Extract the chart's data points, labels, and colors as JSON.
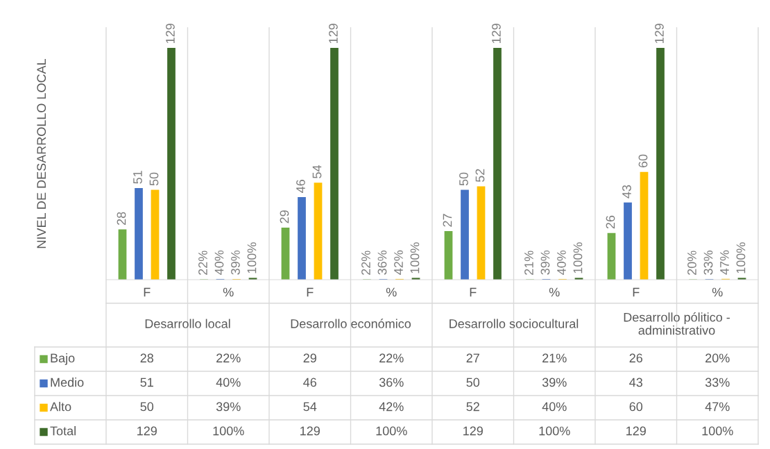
{
  "chart_data": {
    "type": "bar",
    "ylabel": "NIVEL DE DESARROLLO LOCAL",
    "categories": [
      "F",
      "%",
      "F",
      "%",
      "F",
      "%",
      "F",
      "%"
    ],
    "annotations": [
      "Desarrollo local",
      "Desarrollo económico",
      "Desarrollo sociocultural",
      "Desarrollo pólitico - administrativo"
    ],
    "series": [
      {
        "name": "Bajo",
        "color": "#70ad47",
        "values": [
          28,
          0.22,
          29,
          0.22,
          27,
          0.21,
          26,
          0.2
        ],
        "value_labels": [
          "28",
          "22%",
          "29",
          "22%",
          "27",
          "21%",
          "26",
          "20%"
        ]
      },
      {
        "name": "Medio",
        "color": "#4472c4",
        "values": [
          51,
          0.4,
          46,
          0.36,
          50,
          0.39,
          43,
          0.33
        ],
        "value_labels": [
          "51",
          "40%",
          "46",
          "36%",
          "50",
          "39%",
          "43",
          "33%"
        ]
      },
      {
        "name": "Alto",
        "color": "#ffc000",
        "values": [
          50,
          0.39,
          54,
          0.42,
          52,
          0.4,
          60,
          0.47
        ],
        "value_labels": [
          "50",
          "39%",
          "54",
          "42%",
          "52",
          "40%",
          "60",
          "47%"
        ]
      },
      {
        "name": "Total",
        "color": "#3e6b2a",
        "values": [
          129,
          1.0,
          129,
          1.0,
          129,
          1.0,
          129,
          1.0
        ],
        "value_labels": [
          "129",
          "100%",
          "129",
          "100%",
          "129",
          "100%",
          "129",
          "100%"
        ]
      }
    ],
    "grid": false,
    "legend": "bottom"
  }
}
